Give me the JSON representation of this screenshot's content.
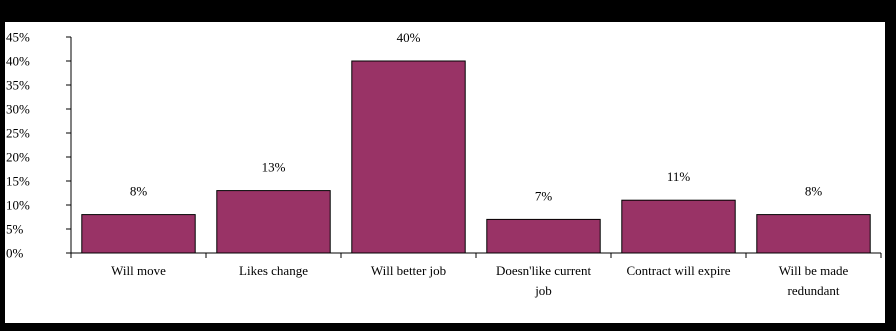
{
  "chart_data": {
    "type": "bar",
    "title": "",
    "xlabel": "",
    "ylabel": "",
    "categories": [
      [
        "Will move"
      ],
      [
        "Likes change"
      ],
      [
        "Will better job"
      ],
      [
        "Doesn'like current",
        "job"
      ],
      [
        "Contract will expire"
      ],
      [
        "Will be made",
        "redundant"
      ]
    ],
    "values": [
      8,
      13,
      40,
      7,
      11,
      8
    ],
    "data_labels": [
      "8%",
      "13%",
      "40%",
      "7%",
      "11%",
      "8%"
    ],
    "ylim": [
      0,
      45
    ],
    "yticks": [
      0,
      5,
      10,
      15,
      20,
      25,
      30,
      35,
      40,
      45
    ],
    "ytick_labels": [
      "0%",
      "5%",
      "10%",
      "15%",
      "20%",
      "25%",
      "30%",
      "35%",
      "40%",
      "45%"
    ],
    "bar_color": "#993366",
    "grid": false,
    "legend": "none"
  }
}
